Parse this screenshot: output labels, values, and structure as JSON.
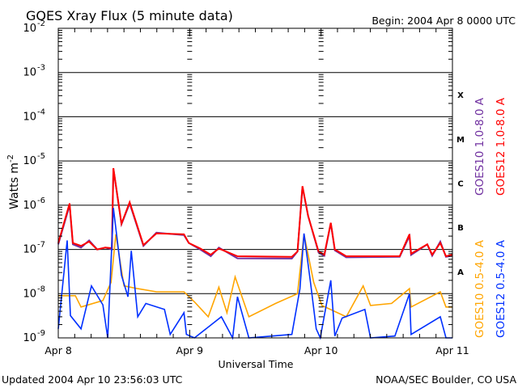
{
  "chart_data": {
    "type": "line",
    "title": "GOES Xray Flux (5 minute data)",
    "subtitle": "Begin:  2004 Apr 8 0000 UTC",
    "xlabel": "Universal Time",
    "ylabel": "Watts m",
    "ylabel_exponent": "-2",
    "y_scale": "log",
    "ylim": [
      1e-09,
      0.01
    ],
    "xlim": [
      "2004-04-08 00:00",
      "2004-04-11 00:00"
    ],
    "y_tick_base": "10",
    "y_ticks": [
      {
        "value": 0.01,
        "exp": "-2"
      },
      {
        "value": 0.001,
        "exp": "-3"
      },
      {
        "value": 0.0001,
        "exp": "-4"
      },
      {
        "value": 1e-05,
        "exp": "-5"
      },
      {
        "value": 1e-06,
        "exp": "-6"
      },
      {
        "value": 1e-07,
        "exp": "-7"
      },
      {
        "value": 1e-08,
        "exp": "-8"
      },
      {
        "value": 1e-09,
        "exp": "-9"
      }
    ],
    "x_ticks": [
      {
        "label": "Apr 8",
        "time": "2004-04-08 00:00"
      },
      {
        "label": "Apr 9",
        "time": "2004-04-09 00:00"
      },
      {
        "label": "Apr 10",
        "time": "2004-04-10 00:00"
      },
      {
        "label": "Apr 11",
        "time": "2004-04-11 00:00"
      }
    ],
    "grid": "horizontal lines at decades 1e-3 to 1e-8",
    "flare_classes": [
      {
        "label": "X",
        "value": 0.000316
      },
      {
        "label": "M",
        "value": 3.16e-05
      },
      {
        "label": "C",
        "value": 3.16e-06
      },
      {
        "label": "B",
        "value": 3.16e-07
      },
      {
        "label": "A",
        "value": 3.16e-08
      }
    ],
    "legend_placement": "right, rotated",
    "series": [
      {
        "name": "GOES10 1.0-8.0 A",
        "color": "#7030a0",
        "points": [
          [
            "2004-04-08 00:00",
            1.3e-07
          ],
          [
            "2004-04-08 02:04",
            1e-06
          ],
          [
            "2004-04-08 02:40",
            1.3e-07
          ],
          [
            "2004-04-08 04:09",
            1.1e-07
          ],
          [
            "2004-04-08 05:38",
            1.6e-07
          ],
          [
            "2004-04-08 07:07",
            1e-07
          ],
          [
            "2004-04-08 08:35",
            1.1e-07
          ],
          [
            "2004-04-08 09:47",
            1e-07
          ],
          [
            "2004-04-08 10:04",
            6.7e-06
          ],
          [
            "2004-04-08 11:33",
            3.7e-07
          ],
          [
            "2004-04-08 13:02",
            1.1e-06
          ],
          [
            "2004-04-08 15:33",
            1.2e-07
          ],
          [
            "2004-04-08 17:56",
            2.4e-07
          ],
          [
            "2004-04-08 22:58",
            2.1e-07
          ],
          [
            "2004-04-08 23:51",
            1.4e-07
          ],
          [
            "2004-04-09 01:56",
            1e-07
          ],
          [
            "2004-04-09 03:51",
            7e-08
          ],
          [
            "2004-04-09 05:20",
            1.1e-07
          ],
          [
            "2004-04-09 08:44",
            6.3e-08
          ],
          [
            "2004-04-09 18:40",
            6.2e-08
          ],
          [
            "2004-04-09 19:42",
            9e-08
          ],
          [
            "2004-04-09 20:36",
            2.6e-06
          ],
          [
            "2004-04-09 21:38",
            5.7e-07
          ],
          [
            "2004-04-09 23:33",
            8.5e-08
          ],
          [
            "2004-04-10 00:36",
            7.2e-08
          ],
          [
            "2004-04-10 01:47",
            3.9e-07
          ],
          [
            "2004-04-10 02:31",
            9.5e-08
          ],
          [
            "2004-04-10 04:36",
            6.6e-08
          ],
          [
            "2004-04-10 14:22",
            6.8e-08
          ],
          [
            "2004-04-10 16:09",
            2e-07
          ],
          [
            "2004-04-10 16:27",
            7.5e-08
          ],
          [
            "2004-04-10 19:24",
            1.3e-07
          ],
          [
            "2004-04-10 20:18",
            7.2e-08
          ],
          [
            "2004-04-10 21:47",
            1.5e-07
          ],
          [
            "2004-04-10 22:49",
            6.8e-08
          ],
          [
            "2004-04-11 00:00",
            7.2e-08
          ]
        ]
      },
      {
        "name": "GOES12 1.0-8.0 A",
        "color": "#ff0000",
        "points": [
          [
            "2004-04-08 00:00",
            1.4e-07
          ],
          [
            "2004-04-08 02:04",
            1.1e-06
          ],
          [
            "2004-04-08 02:40",
            1.4e-07
          ],
          [
            "2004-04-08 04:09",
            1.2e-07
          ],
          [
            "2004-04-08 05:38",
            1.5e-07
          ],
          [
            "2004-04-08 07:07",
            1e-07
          ],
          [
            "2004-04-08 08:35",
            1.1e-07
          ],
          [
            "2004-04-08 09:47",
            1.07e-07
          ],
          [
            "2004-04-08 10:04",
            6.9e-06
          ],
          [
            "2004-04-08 11:33",
            3.8e-07
          ],
          [
            "2004-04-08 13:02",
            1.17e-06
          ],
          [
            "2004-04-08 15:33",
            1.26e-07
          ],
          [
            "2004-04-08 17:56",
            2.3e-07
          ],
          [
            "2004-04-08 22:58",
            2.2e-07
          ],
          [
            "2004-04-08 23:51",
            1.4e-07
          ],
          [
            "2004-04-09 01:56",
            1.05e-07
          ],
          [
            "2004-04-09 03:51",
            7.6e-08
          ],
          [
            "2004-04-09 05:20",
            1.05e-07
          ],
          [
            "2004-04-09 08:44",
            7e-08
          ],
          [
            "2004-04-09 18:40",
            6.8e-08
          ],
          [
            "2004-04-09 19:42",
            9e-08
          ],
          [
            "2004-04-09 20:36",
            2.7e-06
          ],
          [
            "2004-04-09 21:38",
            5.7e-07
          ],
          [
            "2004-04-09 23:33",
            9e-08
          ],
          [
            "2004-04-10 00:36",
            7.6e-08
          ],
          [
            "2004-04-10 01:47",
            4e-07
          ],
          [
            "2004-04-10 02:31",
            1e-07
          ],
          [
            "2004-04-10 04:36",
            7e-08
          ],
          [
            "2004-04-10 14:22",
            7e-08
          ],
          [
            "2004-04-10 16:09",
            2.2e-07
          ],
          [
            "2004-04-10 16:27",
            8e-08
          ],
          [
            "2004-04-10 19:24",
            1.3e-07
          ],
          [
            "2004-04-10 20:18",
            7.6e-08
          ],
          [
            "2004-04-10 21:47",
            1.4e-07
          ],
          [
            "2004-04-10 22:49",
            7e-08
          ],
          [
            "2004-04-11 00:00",
            7.6e-08
          ]
        ]
      },
      {
        "name": "GOES10 0.5-4.0 A",
        "color": "#ffa500",
        "points": [
          [
            "2004-04-08 00:00",
            9e-09
          ],
          [
            "2004-04-08 03:07",
            9e-09
          ],
          [
            "2004-04-08 04:09",
            5e-09
          ],
          [
            "2004-04-08 08:09",
            7e-09
          ],
          [
            "2004-04-08 09:38",
            1.8e-08
          ],
          [
            "2004-04-08 10:31",
            2.2e-07
          ],
          [
            "2004-04-08 12:00",
            1.5e-08
          ],
          [
            "2004-04-08 14:31",
            1.3e-08
          ],
          [
            "2004-04-08 17:56",
            1.1e-08
          ],
          [
            "2004-04-08 22:58",
            1.1e-08
          ],
          [
            "2004-04-09 00:53",
            6.5e-09
          ],
          [
            "2004-04-09 03:24",
            3e-09
          ],
          [
            "2004-04-09 05:20",
            1.4e-08
          ],
          [
            "2004-04-09 06:49",
            3.7e-09
          ],
          [
            "2004-04-09 08:18",
            2.4e-08
          ],
          [
            "2004-04-09 10:49",
            3e-09
          ],
          [
            "2004-04-09 15:42",
            6e-09
          ],
          [
            "2004-04-09 19:42",
            1e-08
          ],
          [
            "2004-04-09 20:53",
            2.2e-07
          ],
          [
            "2004-04-09 22:40",
            1.8e-08
          ],
          [
            "2004-04-10 00:09",
            5.4e-09
          ],
          [
            "2004-04-10 04:36",
            3e-09
          ],
          [
            "2004-04-10 07:42",
            1.5e-08
          ],
          [
            "2004-04-10 09:02",
            5.4e-09
          ],
          [
            "2004-04-10 12:53",
            6e-09
          ],
          [
            "2004-04-10 16:09",
            1.3e-08
          ],
          [
            "2004-04-10 16:27",
            5e-09
          ],
          [
            "2004-04-10 21:47",
            1.1e-08
          ],
          [
            "2004-04-10 22:49",
            5e-09
          ],
          [
            "2004-04-11 00:00",
            5e-09
          ]
        ]
      },
      {
        "name": "GOES12 0.5-4.0 A",
        "color": "#0030ff",
        "points": [
          [
            "2004-04-08 00:00",
            1.6e-09
          ],
          [
            "2004-04-08 01:38",
            1.6e-07
          ],
          [
            "2004-04-08 02:13",
            3.2e-09
          ],
          [
            "2004-04-08 04:09",
            1.6e-09
          ],
          [
            "2004-04-08 06:04",
            1.5e-08
          ],
          [
            "2004-04-08 08:09",
            5.6e-09
          ],
          [
            "2004-04-08 09:02",
            1e-09
          ],
          [
            "2004-04-08 10:04",
            8.7e-07
          ],
          [
            "2004-04-08 11:33",
            2.6e-08
          ],
          [
            "2004-04-08 12:44",
            8.5e-09
          ],
          [
            "2004-04-08 13:20",
            9.3e-08
          ],
          [
            "2004-04-08 14:31",
            3e-09
          ],
          [
            "2004-04-08 16:00",
            6e-09
          ],
          [
            "2004-04-08 19:24",
            4.4e-09
          ],
          [
            "2004-04-08 20:27",
            1.2e-09
          ],
          [
            "2004-04-08 22:58",
            3.7e-09
          ],
          [
            "2004-04-08 23:24",
            1.2e-09
          ],
          [
            "2004-04-09 00:53",
            1e-09
          ],
          [
            "2004-04-09 05:47",
            3e-09
          ],
          [
            "2004-04-09 07:51",
            1e-09
          ],
          [
            "2004-04-09 08:44",
            8.5e-09
          ],
          [
            "2004-04-09 10:49",
            1e-09
          ],
          [
            "2004-04-09 18:40",
            1.2e-09
          ],
          [
            "2004-04-09 20:09",
            1.3e-08
          ],
          [
            "2004-04-09 20:53",
            2.3e-07
          ],
          [
            "2004-04-09 22:04",
            1.8e-08
          ],
          [
            "2004-04-09 23:07",
            1.6e-09
          ],
          [
            "2004-04-09 23:51",
            1e-09
          ],
          [
            "2004-04-10 01:47",
            2e-08
          ],
          [
            "2004-04-10 02:31",
            1.1e-09
          ],
          [
            "2004-04-10 03:51",
            2.8e-09
          ],
          [
            "2004-04-10 08:00",
            4.4e-09
          ],
          [
            "2004-04-10 09:02",
            1e-09
          ],
          [
            "2004-04-10 13:29",
            1.1e-09
          ],
          [
            "2004-04-10 16:09",
            1e-08
          ],
          [
            "2004-04-10 16:27",
            1.2e-09
          ],
          [
            "2004-04-10 21:47",
            3e-09
          ],
          [
            "2004-04-10 22:49",
            1e-09
          ],
          [
            "2004-04-11 00:00",
            1e-09
          ]
        ]
      }
    ]
  },
  "footer": {
    "updated": "Updated 2004 Apr 10 23:56:03 UTC",
    "credit": "NOAA/SEC Boulder, CO USA"
  }
}
